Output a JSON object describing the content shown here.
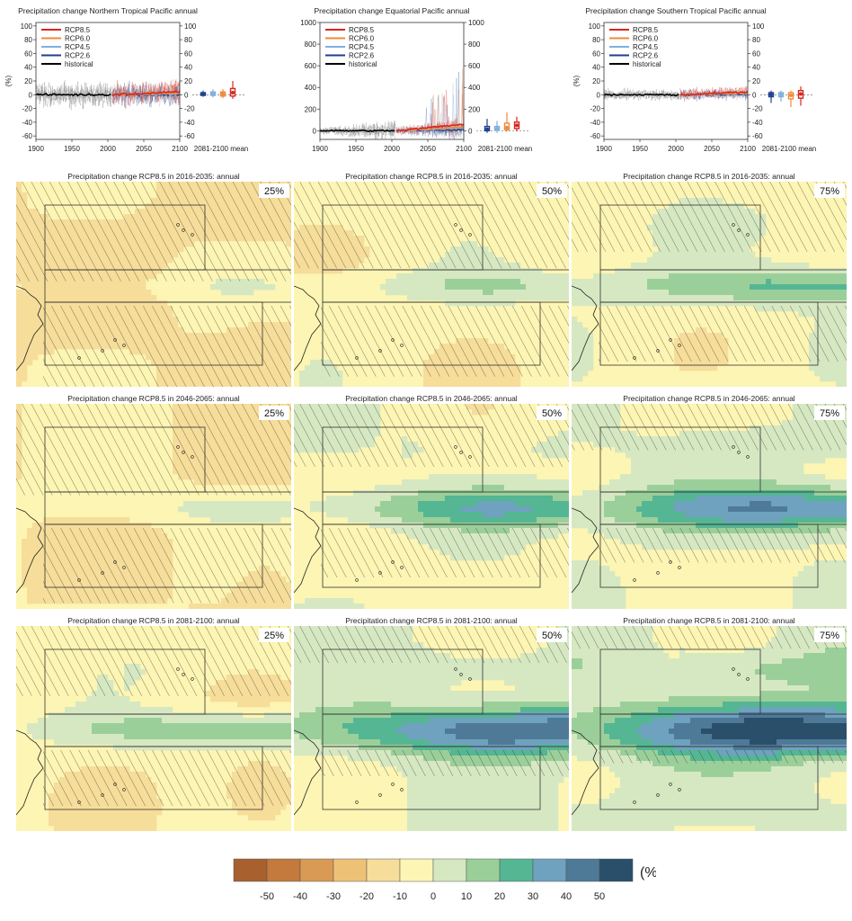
{
  "colors": {
    "rcp85": "#d7261e",
    "rcp60": "#f08a3a",
    "rcp45": "#7fb0dc",
    "rcp26": "#1f3f8f",
    "historical": "#000000",
    "scale": [
      "#a9602f",
      "#c47a3c",
      "#d99a55",
      "#eec276",
      "#f6dd9a",
      "#fdf5b3",
      "#d6e8c2",
      "#9bcf9a",
      "#55b693",
      "#6ea2bf",
      "#4e7a98",
      "#2a4f6b"
    ],
    "hatch": "#333333"
  },
  "chart_data": [
    {
      "type": "line",
      "title": "Precipitation change Northern Tropical Pacific annual",
      "ylabel": "(%)",
      "xlim": [
        1900,
        2100
      ],
      "ylim": [
        -65,
        105
      ],
      "xticks": [
        "1900",
        "1950",
        "2000",
        "2050",
        "2100"
      ],
      "yticks": [
        -60,
        -40,
        -20,
        0,
        20,
        40,
        60,
        80,
        100
      ],
      "legend": [
        "RCP8.5",
        "RCP6.0",
        "RCP4.5",
        "RCP2.6",
        "historical"
      ],
      "legend_position": "top-left",
      "spread": 25,
      "boxes_label": "2081-2100 mean",
      "boxes": [
        {
          "series": "RCP2.6",
          "low": -3,
          "q1": -1,
          "median": 1,
          "q3": 3,
          "high": 6
        },
        {
          "series": "RCP4.5",
          "low": -4,
          "q1": -1,
          "median": 1,
          "q3": 4,
          "high": 8
        },
        {
          "series": "RCP6.0",
          "low": -5,
          "q1": -2,
          "median": 1,
          "q3": 4,
          "high": 8
        },
        {
          "series": "RCP8.5",
          "low": -6,
          "q1": -2,
          "median": 3,
          "q3": 9,
          "high": 20
        }
      ]
    },
    {
      "type": "line",
      "title": "Precipitation change Equatorial Pacific annual",
      "ylabel": "",
      "xlim": [
        1900,
        2100
      ],
      "ylim": [
        -80,
        1000
      ],
      "xticks": [
        "1900",
        "1950",
        "2000",
        "2050",
        "2100"
      ],
      "yticks": [
        0,
        200,
        400,
        600,
        800,
        1000
      ],
      "legend": [
        "RCP8.5",
        "RCP6.0",
        "RCP4.5",
        "RCP2.6",
        "historical"
      ],
      "legend_position": "top-left",
      "spread": 70,
      "boxes_label": "2081-2100 mean",
      "boxes": [
        {
          "series": "RCP2.6",
          "low": -20,
          "q1": 0,
          "median": 15,
          "q3": 40,
          "high": 110
        },
        {
          "series": "RCP4.5",
          "low": -20,
          "q1": 5,
          "median": 20,
          "q3": 40,
          "high": 90
        },
        {
          "series": "RCP6.0",
          "low": -10,
          "q1": 10,
          "median": 30,
          "q3": 70,
          "high": 170
        },
        {
          "series": "RCP8.5",
          "low": -5,
          "q1": 20,
          "median": 50,
          "q3": 80,
          "high": 130
        }
      ]
    },
    {
      "type": "line",
      "title": "Precipitation change Southern Tropical Pacific annual",
      "ylabel": "(%)",
      "xlim": [
        1900,
        2100
      ],
      "ylim": [
        -65,
        105
      ],
      "xticks": [
        "1900",
        "1950",
        "2000",
        "2050",
        "2100"
      ],
      "yticks": [
        -60,
        -40,
        -20,
        0,
        20,
        40,
        60,
        80,
        100
      ],
      "legend": [
        "RCP8.5",
        "RCP6.0",
        "RCP4.5",
        "RCP2.6",
        "historical"
      ],
      "legend_position": "top-left",
      "spread": 12,
      "boxes_label": "2081-2100 mean",
      "boxes": [
        {
          "series": "RCP2.6",
          "low": -12,
          "q1": -3,
          "median": 0,
          "q3": 3,
          "high": 6
        },
        {
          "series": "RCP4.5",
          "low": -10,
          "q1": -3,
          "median": 0,
          "q3": 3,
          "high": 6
        },
        {
          "series": "RCP6.0",
          "low": -18,
          "q1": -6,
          "median": -1,
          "q3": 3,
          "high": 6
        },
        {
          "series": "RCP8.5",
          "low": -16,
          "q1": -5,
          "median": 1,
          "q3": 6,
          "high": 12
        }
      ]
    },
    {
      "type": "heatmap",
      "maps": [
        {
          "title": "Precipitation change RCP8.5 in 2016-2035: annual",
          "percentile": "25%",
          "intensity": 0.35
        },
        {
          "title": "Precipitation change RCP8.5 in 2016-2035: annual",
          "percentile": "50%",
          "intensity": 0.9
        },
        {
          "title": "Precipitation change RCP8.5 in 2016-2035: annual",
          "percentile": "75%",
          "intensity": 1.6
        },
        {
          "title": "Precipitation change RCP8.5 in 2046-2065: annual",
          "percentile": "25%",
          "intensity": 0.7
        },
        {
          "title": "Precipitation change RCP8.5 in 2046-2065: annual",
          "percentile": "50%",
          "intensity": 1.9
        },
        {
          "title": "Precipitation change RCP8.5 in 2046-2065: annual",
          "percentile": "75%",
          "intensity": 2.6
        },
        {
          "title": "Precipitation change RCP8.5 in 2081-2100: annual",
          "percentile": "25%",
          "intensity": 1.6
        },
        {
          "title": "Precipitation change RCP8.5 in 2081-2100: annual",
          "percentile": "50%",
          "intensity": 3.0
        },
        {
          "title": "Precipitation change RCP8.5 in 2081-2100: annual",
          "percentile": "75%",
          "intensity": 3.6
        }
      ],
      "colorbar": {
        "ticks": [
          "-50",
          "-40",
          "-30",
          "-20",
          "-10",
          "0",
          "10",
          "20",
          "30",
          "40",
          "50"
        ],
        "unit": "(%)"
      }
    }
  ]
}
